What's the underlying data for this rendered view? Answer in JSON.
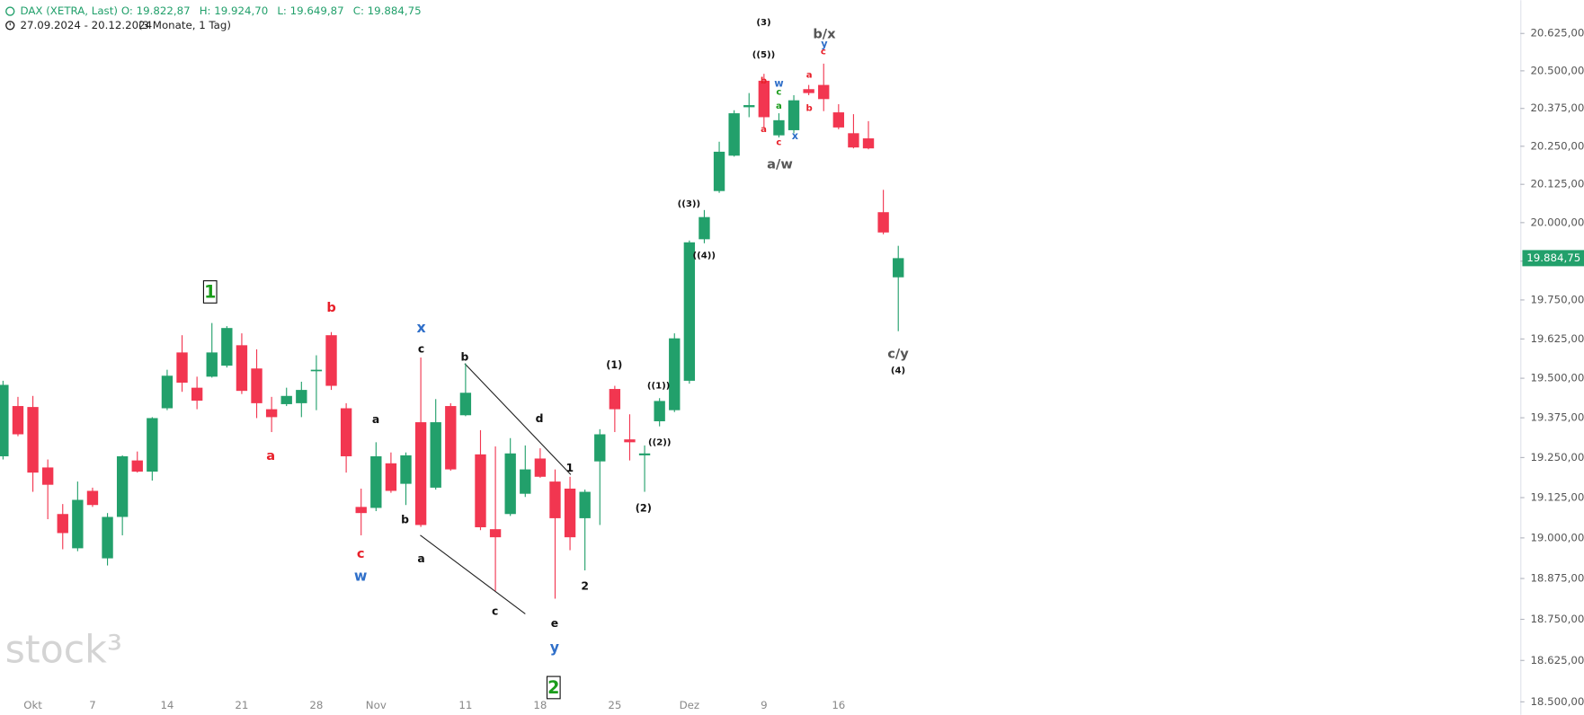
{
  "chart_data": {
    "type": "candlestick",
    "title": "DAX (XETRA, Last)",
    "ohlc_labels": [
      "O: 19.822,87",
      "H: 19.924,70",
      "L: 19.649,87",
      "C: 19.884,75"
    ],
    "date_range": "27.09.2024 - 20.12.2024",
    "period": "(3 Monate, 1 Tag)",
    "watermark": "stock³",
    "last_price_label": "19.884,75",
    "log_scale": true,
    "grid": false,
    "up_color": "#22a06b",
    "down_color": "#f23650",
    "categories": [
      null,
      null,
      "Okt",
      null,
      null,
      null,
      "7",
      null,
      null,
      null,
      null,
      "14",
      null,
      null,
      null,
      null,
      "21",
      null,
      null,
      null,
      null,
      "28",
      null,
      null,
      null,
      "Nov",
      null,
      null,
      null,
      null,
      null,
      "11",
      null,
      null,
      null,
      null,
      "18",
      null,
      null,
      null,
      null,
      "25",
      null,
      null,
      null,
      null,
      "Dez",
      null,
      null,
      null,
      null,
      "9",
      null,
      null,
      null,
      null,
      "16",
      null,
      null,
      null,
      null
    ],
    "open": [
      19254,
      19412,
      19409,
      19219,
      19074,
      18968,
      19146,
      18937,
      19065,
      19241,
      19206,
      19405,
      19582,
      19470,
      19505,
      19540,
      19605,
      19531,
      19402,
      19418,
      19421,
      19524,
      19637,
      19405,
      19096,
      19093,
      19232,
      19168,
      19361,
      19156,
      19412,
      19383,
      19260,
      19027,
      19074,
      19137,
      19247,
      19175,
      19153,
      19061,
      19238,
      19466,
      19307,
      19257,
      19364,
      19399,
      19492,
      19946,
      20103,
      20219,
      20379,
      20467,
      20286,
      20303,
      20439,
      20453,
      20362,
      20293,
      20276,
      20034,
      19822.87
    ],
    "high": [
      19492,
      19441,
      19444,
      19244,
      19105,
      19175,
      19156,
      19077,
      19257,
      19269,
      19377,
      19527,
      19637,
      19505,
      19676,
      19666,
      19643,
      19592,
      19441,
      19470,
      19489,
      19573,
      19647,
      19421,
      19153,
      19298,
      19266,
      19266,
      19566,
      19434,
      19421,
      19547,
      19336,
      19285,
      19311,
      19288,
      19279,
      19213,
      19190,
      19150,
      19339,
      19476,
      19386,
      19288,
      19437,
      19643,
      19942,
      20041,
      20265,
      20369,
      20426,
      20490,
      20359,
      20419,
      20453,
      20524,
      20389,
      20356,
      20333,
      20107,
      19924.7
    ],
    "low": [
      19244,
      19317,
      19143,
      19058,
      18965,
      18959,
      19096,
      18915,
      19008,
      19203,
      19178,
      19399,
      19457,
      19402,
      19502,
      19534,
      19450,
      19374,
      19330,
      19412,
      19377,
      19399,
      19463,
      19203,
      19008,
      19083,
      19140,
      19102,
      19034,
      19150,
      19209,
      19380,
      19024,
      18837,
      19068,
      19127,
      19187,
      18813,
      18962,
      18900,
      19040,
      19330,
      19241,
      19143,
      19348,
      19393,
      19483,
      19933,
      20097,
      20216,
      20346,
      20313,
      20279,
      20293,
      20419,
      20366,
      20306,
      20243,
      20240,
      19962,
      19649.87
    ],
    "close": [
      19479,
      19323,
      19203,
      19165,
      19015,
      19118,
      19102,
      19065,
      19254,
      19206,
      19374,
      19508,
      19486,
      19429,
      19582,
      19660,
      19460,
      19421,
      19377,
      19444,
      19463,
      19527,
      19476,
      19254,
      19077,
      19254,
      19146,
      19257,
      19040,
      19361,
      19213,
      19454,
      19033,
      19002,
      19263,
      19213,
      19190,
      19061,
      19002,
      19143,
      19323,
      19402,
      19298,
      19263,
      19428,
      19627,
      19936,
      20018,
      20232,
      20359,
      20386,
      20346,
      20336,
      20402,
      20426,
      20406,
      20312,
      20246,
      20243,
      19968,
      19884.75
    ],
    "ylim": [
      18461,
      20737
    ],
    "yticks": [
      {
        "value": 18500,
        "label": "18.500,00"
      },
      {
        "value": 18625,
        "label": "18.625,00"
      },
      {
        "value": 18750,
        "label": "18.750,00"
      },
      {
        "value": 18875,
        "label": "18.875,00"
      },
      {
        "value": 19000,
        "label": "19.000,00"
      },
      {
        "value": 19125,
        "label": "19.125,00"
      },
      {
        "value": 19250,
        "label": "19.250,00"
      },
      {
        "value": 19375,
        "label": "19.375,00"
      },
      {
        "value": 19500,
        "label": "19.500,00"
      },
      {
        "value": 19625,
        "label": "19.625,00"
      },
      {
        "value": 19750,
        "label": "19.750,00"
      },
      {
        "value": 19875,
        "label": "19.875,00"
      },
      {
        "value": 20000,
        "label": "20.000,00"
      },
      {
        "value": 20125,
        "label": "20.125,00"
      },
      {
        "value": 20250,
        "label": "20.250,00"
      },
      {
        "value": 20375,
        "label": "20.375,00"
      },
      {
        "value": 20500,
        "label": "20.500,00"
      },
      {
        "value": 20625,
        "label": "20.625,00"
      }
    ],
    "annotations": [
      {
        "text": "1",
        "color": "#1a9c1a",
        "boxed": true
      },
      {
        "text": "b",
        "color": "#e8202a"
      },
      {
        "text": "a",
        "color": "#e8202a"
      },
      {
        "text": "c",
        "color": "#e8202a"
      },
      {
        "text": "w",
        "color": "#2f6fc9"
      },
      {
        "text": "x",
        "color": "#2f6fc9"
      },
      {
        "text": "c",
        "color": "#111111"
      },
      {
        "text": "a",
        "color": "#111111"
      },
      {
        "text": "b",
        "color": "#111111"
      },
      {
        "text": "a",
        "color": "#111111"
      },
      {
        "text": "b",
        "color": "#111111"
      },
      {
        "text": "d",
        "color": "#111111"
      },
      {
        "text": "c",
        "color": "#111111"
      },
      {
        "text": "e",
        "color": "#111111"
      },
      {
        "text": "1",
        "color": "#111111"
      },
      {
        "text": "2",
        "color": "#111111"
      },
      {
        "text": "y",
        "color": "#2f6fc9"
      },
      {
        "text": "2",
        "color": "#1a9c1a",
        "boxed": true
      },
      {
        "text": "(1)",
        "color": "#111111"
      },
      {
        "text": "(2)",
        "color": "#111111"
      },
      {
        "text": "((1))",
        "color": "#111111"
      },
      {
        "text": "((2))",
        "color": "#111111"
      },
      {
        "text": "((3))",
        "color": "#111111"
      },
      {
        "text": "((4))",
        "color": "#111111"
      },
      {
        "text": "(3)",
        "color": "#111111"
      },
      {
        "text": "((5))",
        "color": "#111111"
      },
      {
        "text": "b/x",
        "color": "#555555"
      },
      {
        "text": "y",
        "color": "#2f6fc9"
      },
      {
        "text": "c",
        "color": "#e8202a"
      },
      {
        "text": "b",
        "color": "#e8202a"
      },
      {
        "text": "a",
        "color": "#e8202a"
      },
      {
        "text": "w",
        "color": "#2f6fc9"
      },
      {
        "text": "c",
        "color": "#1a9c1a"
      },
      {
        "text": "a",
        "color": "#1a9c1a"
      },
      {
        "text": "c",
        "color": "#e8202a"
      },
      {
        "text": "x",
        "color": "#2f6fc9"
      },
      {
        "text": "a",
        "color": "#e8202a"
      },
      {
        "text": "b",
        "color": "#e8202a"
      },
      {
        "text": "a/w",
        "color": "#555555"
      },
      {
        "text": "c/y",
        "color": "#555555"
      },
      {
        "text": "(4)",
        "color": "#111111"
      }
    ]
  }
}
